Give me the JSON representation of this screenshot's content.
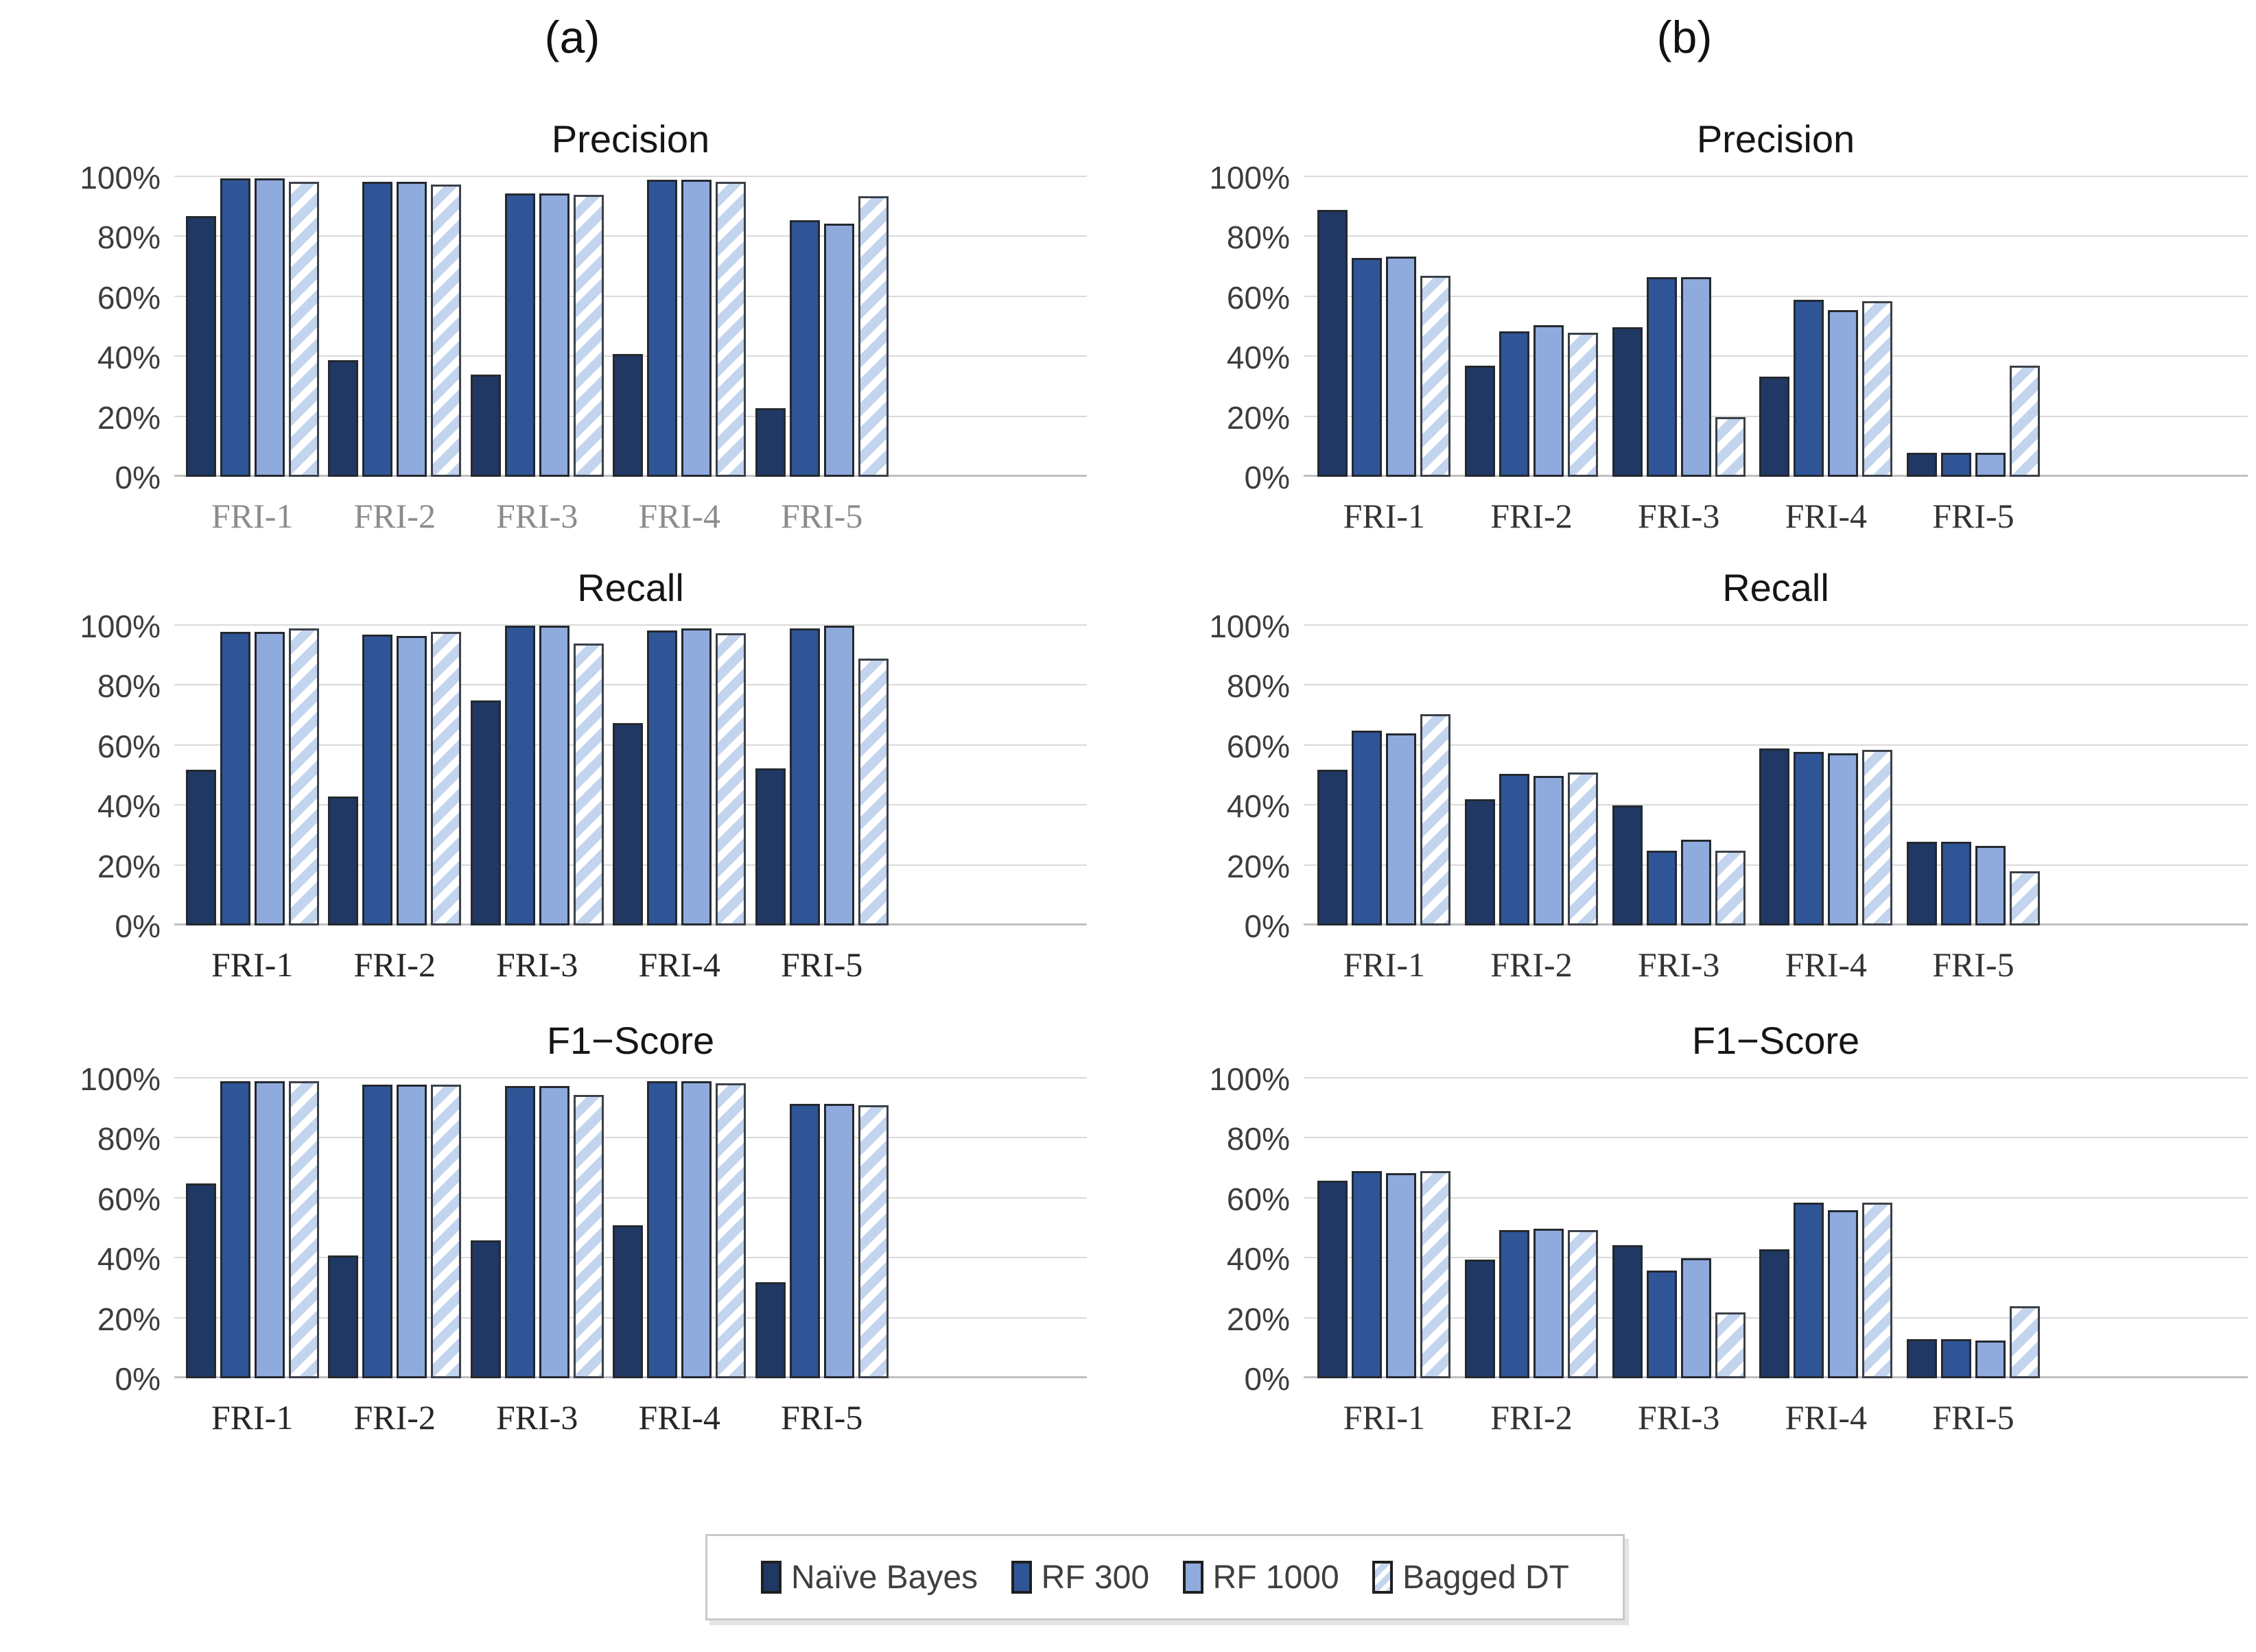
{
  "figure": {
    "panel_a_label": "(a)",
    "panel_b_label": "(b)"
  },
  "legend": {
    "items": [
      {
        "label": "Naïve Bayes",
        "swatch": "solid-navy"
      },
      {
        "label": "RF 300",
        "swatch": "solid-blue"
      },
      {
        "label": "RF 1000",
        "swatch": "solid-lightblue"
      },
      {
        "label": "Bagged DT",
        "swatch": "striped-lightblue"
      }
    ]
  },
  "colors": {
    "naive_bayes": "#203864",
    "rf_300": "#2F5597",
    "rf_1000": "#8FAADC",
    "bagged_dt_base": "#C3D4EE",
    "bagged_dt_stripe": "#FFFFFF",
    "gridline": "#D9D9D9",
    "axis": "#BFBFBF",
    "tick_text": "#3D3D3D"
  },
  "y_axis": {
    "min": 0,
    "max": 100,
    "ticks": [
      "0%",
      "20%",
      "40%",
      "60%",
      "80%",
      "100%"
    ]
  },
  "chart_data": [
    {
      "type": "bar",
      "panel": "a",
      "row": 0,
      "title": "Precision",
      "categories": [
        "FRI-1",
        "FRI-2",
        "FRI-3",
        "FRI-4",
        "FRI-5"
      ],
      "xlabel_color": "#8C8C8C",
      "ylim": [
        0,
        100
      ],
      "grid": true,
      "legend_position": "bottom-shared",
      "series": [
        {
          "name": "Naïve Bayes",
          "values": [
            87,
            39,
            34,
            41,
            23
          ]
        },
        {
          "name": "RF 300",
          "values": [
            99.5,
            98.5,
            94.5,
            99,
            85.5
          ]
        },
        {
          "name": "RF 1000",
          "values": [
            99.5,
            98.5,
            94.5,
            99,
            84.5
          ]
        },
        {
          "name": "Bagged DT",
          "values": [
            98.5,
            97.5,
            94,
            98.5,
            93.5
          ]
        }
      ]
    },
    {
      "type": "bar",
      "panel": "b",
      "row": 0,
      "title": "Precision",
      "categories": [
        "FRI-1",
        "FRI-2",
        "FRI-3",
        "FRI-4",
        "FRI-5"
      ],
      "xlabel_color": "#333333",
      "ylim": [
        0,
        100
      ],
      "grid": true,
      "legend_position": "bottom-shared",
      "series": [
        {
          "name": "Naïve Bayes",
          "values": [
            89,
            37,
            50,
            33.5,
            8
          ]
        },
        {
          "name": "RF 300",
          "values": [
            73,
            48.5,
            66.5,
            59,
            8
          ]
        },
        {
          "name": "RF 1000",
          "values": [
            73.5,
            50.5,
            66.5,
            55.5,
            8
          ]
        },
        {
          "name": "Bagged DT",
          "values": [
            67,
            48,
            20,
            58.5,
            37
          ]
        }
      ]
    },
    {
      "type": "bar",
      "panel": "a",
      "row": 1,
      "title": "Recall",
      "categories": [
        "FRI-1",
        "FRI-2",
        "FRI-3",
        "FRI-4",
        "FRI-5"
      ],
      "xlabel_color": "#262626",
      "ylim": [
        0,
        100
      ],
      "grid": true,
      "legend_position": "bottom-shared",
      "series": [
        {
          "name": "Naïve Bayes",
          "values": [
            52,
            43,
            75,
            67.5,
            52.5
          ]
        },
        {
          "name": "RF 300",
          "values": [
            98,
            97,
            100,
            98.5,
            99
          ]
        },
        {
          "name": "RF 1000",
          "values": [
            98,
            96.5,
            100,
            99,
            100
          ]
        },
        {
          "name": "Bagged DT",
          "values": [
            99,
            98,
            94,
            97.5,
            89
          ]
        }
      ]
    },
    {
      "type": "bar",
      "panel": "b",
      "row": 1,
      "title": "Recall",
      "categories": [
        "FRI-1",
        "FRI-2",
        "FRI-3",
        "FRI-4",
        "FRI-5"
      ],
      "xlabel_color": "#333333",
      "ylim": [
        0,
        100
      ],
      "grid": true,
      "legend_position": "bottom-shared",
      "series": [
        {
          "name": "Naïve Bayes",
          "values": [
            52,
            42,
            40,
            59,
            28
          ]
        },
        {
          "name": "RF 300",
          "values": [
            65,
            50.5,
            25,
            58,
            28
          ]
        },
        {
          "name": "RF 1000",
          "values": [
            64,
            50,
            28.5,
            57.5,
            26.5
          ]
        },
        {
          "name": "Bagged DT",
          "values": [
            70.5,
            51,
            25,
            58.5,
            18
          ]
        }
      ]
    },
    {
      "type": "bar",
      "panel": "a",
      "row": 2,
      "title": "F1−Score",
      "categories": [
        "FRI-1",
        "FRI-2",
        "FRI-3",
        "FRI-4",
        "FRI-5"
      ],
      "xlabel_color": "#262626",
      "ylim": [
        0,
        100
      ],
      "grid": true,
      "legend_position": "bottom-shared",
      "series": [
        {
          "name": "Naïve Bayes",
          "values": [
            65,
            41,
            46,
            51,
            32
          ]
        },
        {
          "name": "RF 300",
          "values": [
            99,
            98,
            97.5,
            99,
            91.5
          ]
        },
        {
          "name": "RF 1000",
          "values": [
            99,
            98,
            97.5,
            99,
            91.5
          ]
        },
        {
          "name": "Bagged DT",
          "values": [
            99,
            98,
            94.5,
            98.5,
            91
          ]
        }
      ]
    },
    {
      "type": "bar",
      "panel": "b",
      "row": 2,
      "title": "F1−Score",
      "categories": [
        "FRI-1",
        "FRI-2",
        "FRI-3",
        "FRI-4",
        "FRI-5"
      ],
      "xlabel_color": "#333333",
      "ylim": [
        0,
        100
      ],
      "grid": true,
      "legend_position": "bottom-shared",
      "series": [
        {
          "name": "Naïve Bayes",
          "values": [
            66,
            39.5,
            44.5,
            43,
            13
          ]
        },
        {
          "name": "RF 300",
          "values": [
            69,
            49.5,
            36,
            58.5,
            13
          ]
        },
        {
          "name": "RF 1000",
          "values": [
            68.5,
            50,
            40,
            56,
            12.5
          ]
        },
        {
          "name": "Bagged DT",
          "values": [
            69,
            49.5,
            22,
            58.5,
            24
          ]
        }
      ]
    }
  ]
}
